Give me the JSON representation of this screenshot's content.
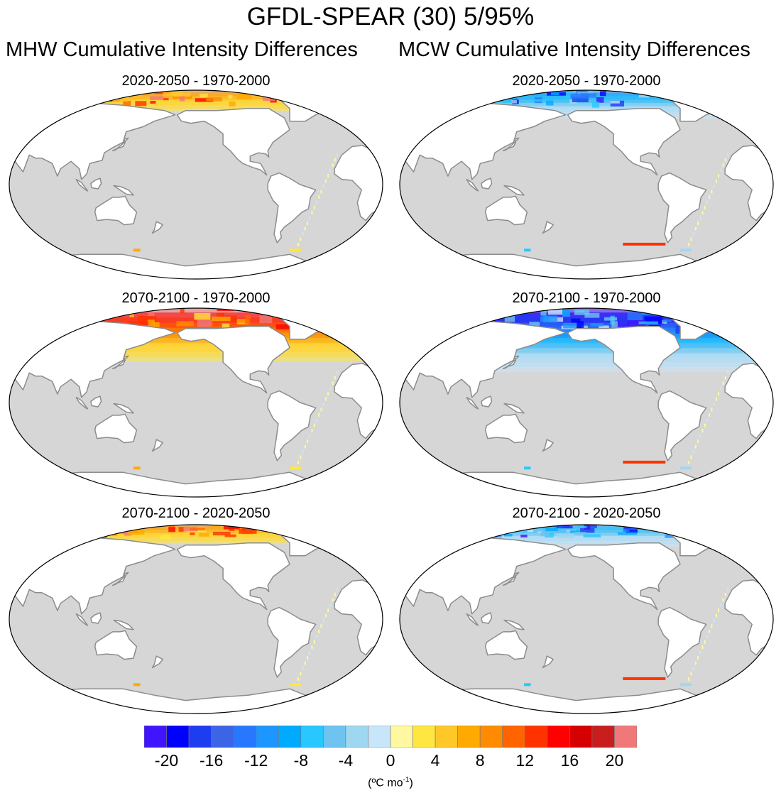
{
  "title": "GFDL-SPEAR (30) 5/95%",
  "columns": [
    {
      "title": "MHW Cumulative Intensity Differences",
      "kind": "warm"
    },
    {
      "title": "MCW Cumulative Intensity Differences",
      "kind": "cold"
    }
  ],
  "rows": [
    {
      "title": "2020-2050 - 1970-2000",
      "intensity": 0.55
    },
    {
      "title": "2070-2100 - 1970-2000",
      "intensity": 1.0
    },
    {
      "title": "2070-2100 - 2020-2050",
      "intensity": 0.45
    }
  ],
  "colorbar": {
    "colors": [
      "#4014ff",
      "#0000ff",
      "#1e3cf0",
      "#3c64e6",
      "#2878ff",
      "#1e96ff",
      "#00aaff",
      "#28c8ff",
      "#6ec3f0",
      "#a0d7f0",
      "#c8e6fa",
      "#fff8a0",
      "#ffe640",
      "#ffc828",
      "#ffaa00",
      "#ff8c00",
      "#ff6400",
      "#ff3200",
      "#ff0000",
      "#d70000",
      "#c81e1e",
      "#f07878"
    ],
    "tick_labels": [
      "-20",
      "-16",
      "-12",
      "-8",
      "-4",
      "0",
      "4",
      "8",
      "12",
      "16",
      "20"
    ],
    "units_prefix": "(ºC mo",
    "units_exp": "-1",
    "units_suffix": ")"
  },
  "colors": {
    "ocean": "#d6d6d6",
    "land": "#ffffff",
    "coast": "#8c8c8c"
  }
}
